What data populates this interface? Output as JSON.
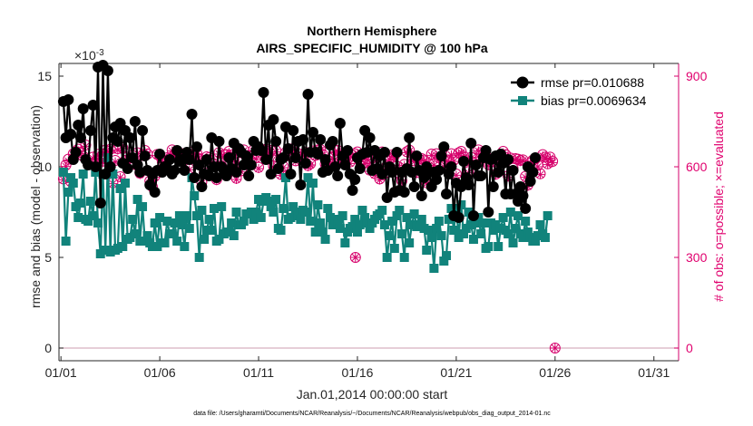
{
  "chart_data": {
    "type": "line",
    "title": "Northern Hemisphere",
    "subtitle": "AIRS_SPECIFIC_HUMIDITY @ 100 hPa",
    "xlabel": "Jan.01,2014 00:00:00 start",
    "ylabel": "rmse and bias (model - observation)",
    "y2label": "# of obs: o=possible; ×=evaluated",
    "exponent_label": "×10",
    "exponent_power": "-3",
    "x_tick_labels": [
      "01/01",
      "01/06",
      "01/11",
      "01/16",
      "01/21",
      "01/26",
      "01/31"
    ],
    "x_tick_days": [
      0,
      5,
      10,
      15,
      20,
      25,
      30
    ],
    "xlim": [
      -0.1,
      31.25
    ],
    "y_tick_labels": [
      "0",
      "5",
      "10",
      "15"
    ],
    "y_ticks": [
      0,
      5,
      10,
      15
    ],
    "ylim": [
      -0.7,
      15.7
    ],
    "y2_tick_labels": [
      "0",
      "300",
      "600",
      "900"
    ],
    "y2_ticks": [
      0,
      300,
      600,
      900
    ],
    "y2lim": [
      -42,
      942
    ],
    "legend_placement": "top-right",
    "x_days": [
      0.125,
      0.25,
      0.375,
      0.5,
      0.625,
      0.75,
      0.875,
      1,
      1.125,
      1.25,
      1.375,
      1.5,
      1.625,
      1.75,
      1.875,
      2,
      2.125,
      2.25,
      2.375,
      2.5,
      2.625,
      2.75,
      2.875,
      3,
      3.125,
      3.25,
      3.375,
      3.5,
      3.625,
      3.75,
      3.875,
      4,
      4.125,
      4.25,
      4.375,
      4.5,
      4.625,
      4.75,
      4.875,
      5,
      5.125,
      5.25,
      5.375,
      5.5,
      5.625,
      5.75,
      5.875,
      6,
      6.125,
      6.25,
      6.375,
      6.5,
      6.625,
      6.75,
      6.875,
      7,
      7.125,
      7.25,
      7.375,
      7.5,
      7.625,
      7.75,
      7.875,
      8,
      8.125,
      8.25,
      8.375,
      8.5,
      8.625,
      8.75,
      8.875,
      9,
      9.125,
      9.25,
      9.375,
      9.5,
      9.625,
      9.75,
      9.875,
      10,
      10.125,
      10.25,
      10.375,
      10.5,
      10.625,
      10.75,
      10.875,
      11,
      11.125,
      11.25,
      11.375,
      11.5,
      11.625,
      11.75,
      11.875,
      12,
      12.125,
      12.25,
      12.375,
      12.5,
      12.625,
      12.75,
      12.875,
      13,
      13.125,
      13.25,
      13.375,
      13.5,
      13.625,
      13.75,
      13.875,
      14,
      14.125,
      14.25,
      14.375,
      14.5,
      14.625,
      14.75,
      14.875,
      15,
      15.125,
      15.25,
      15.375,
      15.5,
      15.625,
      15.75,
      15.875,
      16,
      16.125,
      16.25,
      16.375,
      16.5,
      16.625,
      16.75,
      16.875,
      17,
      17.125,
      17.25,
      17.375,
      17.5,
      17.625,
      17.75,
      17.875,
      18,
      18.125,
      18.25,
      18.375,
      18.5,
      18.625,
      18.75,
      18.875,
      19,
      19.125,
      19.25,
      19.375,
      19.5,
      19.625,
      19.75,
      19.875,
      20,
      20.125,
      20.25,
      20.375,
      20.5,
      20.625,
      20.75,
      20.875,
      21,
      21.125,
      21.25,
      21.375,
      21.5,
      21.625,
      21.75,
      21.875,
      22,
      22.125,
      22.25,
      22.375,
      22.5,
      22.625,
      22.75,
      22.875,
      23,
      23.125,
      23.25,
      23.375,
      23.5,
      23.625,
      23.75,
      23.875,
      24,
      24.125,
      24.25,
      24.375,
      24.5,
      24.625,
      24.75,
      24.875,
      25,
      25.125,
      25.25,
      25.375,
      25.5,
      25.625,
      25.75,
      25.875,
      26,
      26.125,
      26.25,
      26.375,
      26.5,
      26.625,
      26.75,
      26.875,
      27,
      27.125,
      27.25,
      27.375,
      27.5,
      27.625,
      27.75,
      27.875,
      28,
      28.125,
      28.25,
      28.375,
      28.5,
      28.625,
      28.75,
      28.875,
      29,
      29.125,
      29.25,
      29.375,
      29.5,
      29.625,
      29.75,
      29.875,
      30,
      30.125,
      30.25,
      30.375,
      30.5,
      30.625,
      30.75,
      30.875,
      31
    ],
    "series": [
      {
        "name": "rmse pr=0.010688",
        "axis": "left",
        "color": "#000000",
        "marker": "circle",
        "values": [
          13.6,
          11.6,
          13.7,
          11.8,
          10.4,
          10.8,
          12.3,
          11.6,
          13.2,
          10.4,
          10.1,
          12.0,
          13.4,
          10.0,
          15.5,
          8.0,
          15.6,
          9.6,
          15.3,
          10.0,
          11.6,
          12.2,
          11.4,
          12.4,
          10.2,
          12.0,
          9.9,
          11.6,
          10.5,
          12.5,
          10.1,
          9.7,
          12.0,
          10.6,
          9.8,
          9.0,
          9.6,
          8.6,
          9.8,
          10.7,
          9.7,
          10.0,
          9.9,
          10.4,
          9.6,
          9.8,
          10.9,
          10.3,
          10.4,
          9.8,
          10.8,
          10.4,
          12.9,
          9.4,
          11.1,
          10.1,
          8.9,
          9.6,
          10.4,
          9.5,
          11.6,
          10.0,
          9.4,
          11.4,
          10.0,
          9.8,
          9.5,
          10.5,
          9.9,
          11.3,
          9.7,
          11.0,
          10.8,
          10.1,
          10.6,
          9.5,
          10.1,
          11.4,
          10.9,
          11.1,
          10.9,
          14.1,
          10.4,
          12.3,
          9.6,
          12.6,
          11.4,
          9.9,
          10.4,
          10.5,
          12.2,
          11.0,
          9.6,
          12.0,
          10.5,
          11.4,
          9.0,
          11.5,
          10.2,
          14.0,
          10.8,
          11.9,
          10.8,
          10.7,
          11.5,
          9.7,
          10.4,
          9.8,
          11.2,
          11.4,
          10.0,
          9.5,
          12.4,
          10.6,
          10.1,
          10.9,
          9.6,
          8.7,
          9.3,
          10.5,
          9.9,
          10.7,
          12.0,
          10.8,
          11.6,
          9.8,
          10.9,
          9.9,
          10.6,
          9.6,
          10.8,
          8.3,
          10.0,
          9.7,
          8.6,
          10.8,
          8.7,
          9.7,
          8.6,
          9.9,
          11.6,
          9.7,
          8.9,
          10.6,
          9.8,
          8.4,
          9.4,
          10.0,
          9.7,
          8.9,
          9.7,
          9.3,
          9.8,
          10.6,
          11.1,
          8.5,
          9.6,
          10.0,
          7.3,
          9.1,
          7.2,
          8.9,
          10.3,
          9.4,
          9.0,
          11.3,
          7.3,
          10.1,
          9.5,
          9.5,
          10.5,
          10.9,
          7.5,
          10.4,
          8.9,
          10.6,
          9.7,
          10.7,
          10.2,
          8.5,
          10.4,
          8.5,
          9.8,
          8.5,
          8.1,
          8.9,
          8.4,
          7.7,
          10.0,
          9.2,
          9.7,
          10.5
        ]
      },
      {
        "name": "bias pr=0.0069634",
        "axis": "left",
        "color": "#11837b",
        "marker": "square",
        "values": [
          9.7,
          5.9,
          8.6,
          9.4,
          9.1,
          7.8,
          7.2,
          8.0,
          9.6,
          7.1,
          7.0,
          8.1,
          7.3,
          9.7,
          6.9,
          5.2,
          9.6,
          5.4,
          10.5,
          5.3,
          9.6,
          5.4,
          5.5,
          8.8,
          5.6,
          9.1,
          6.0,
          6.1,
          7.1,
          6.3,
          8.2,
          5.9,
          7.8,
          5.9,
          6.2,
          5.8,
          5.6,
          6.9,
          5.6,
          7.2,
          5.8,
          5.8,
          7.0,
          6.3,
          6.3,
          6.9,
          5.9,
          7.3,
          6.8,
          5.6,
          7.3,
          6.6,
          9.4,
          8.4,
          7.3,
          5.0,
          7.6,
          6.0,
          6.5,
          7.1,
          6.5,
          7.7,
          5.9,
          6.0,
          7.8,
          6.3,
          6.4,
          6.4,
          6.9,
          6.2,
          7.5,
          6.8,
          6.8,
          7.0,
          7.4,
          7.4,
          7.5,
          7.1,
          7.5,
          8.2,
          7.2,
          8.1,
          8.3,
          8.1,
          7.8,
          7.5,
          8.2,
          6.6,
          6.5,
          7.7,
          9.4,
          7.1,
          7.2,
          7.8,
          7.5,
          7.3,
          7.1,
          7.6,
          7.5,
          9.4,
          7.0,
          9.1,
          6.4,
          7.9,
          6.9,
          6.4,
          6.0,
          7.7,
          7.2,
          6.8,
          7.1,
          6.9,
          6.6,
          7.3,
          5.8,
          6.4,
          6.6,
          6.7,
          7.1,
          6.4,
          6.8,
          7.6,
          7.2,
          6.9,
          6.6,
          6.9,
          7.1,
          7.3,
          7.4,
          7.6,
          6.8,
          5.0,
          6.2,
          7.0,
          5.5,
          7.3,
          7.6,
          6.3,
          5.0,
          7.2,
          5.8,
          6.8,
          7.4,
          6.7,
          6.8,
          7.1,
          6.6,
          5.4,
          6.5,
          6.1,
          4.4,
          6.6,
          7.0,
          6.2,
          4.8,
          5.1,
          7.1,
          7.7,
          6.5,
          7.7,
          6.1,
          7.9,
          6.3,
          6.6,
          7.5,
          6.8,
          6.0,
          6.9,
          7.2,
          6.3,
          6.9,
          5.5,
          5.6,
          6.9,
          6.5,
          6.8,
          5.6,
          6.6,
          7.2,
          6.5,
          6.3,
          7.5,
          5.8,
          6.6,
          7.3,
          6.3,
          6.1,
          7.0,
          6.4,
          6.1,
          5.9,
          5.9,
          6.2,
          6.8,
          6.3,
          6.1,
          7.3
        ]
      },
      {
        "name": "possible",
        "axis": "right",
        "color": "#d6006b",
        "marker": "circle-open",
        "values": [
          560,
          606,
          625,
          551,
          643,
          650,
          658,
          648,
          635,
          672,
          608,
          610,
          632,
          611,
          641,
          631,
          619,
          655,
          651,
          658,
          547,
          621,
          660,
          567,
          663,
          621,
          632,
          629,
          637,
          608,
          646,
          579,
          638,
          654,
          642,
          553,
          534,
          569,
          641,
          636,
          617,
          602,
          630,
          628,
          656,
          642,
          638,
          622,
          643,
          629,
          643,
          593,
          648,
          636,
          645,
          627,
          549,
          581,
          633,
          630,
          612,
          610,
          558,
          647,
          603,
          640,
          640,
          651,
          639,
          633,
          562,
          615,
          587,
          656,
          608,
          638,
          633,
          656,
          631,
          598,
          646,
          654,
          658,
          640,
          654,
          603,
          654,
          620,
          575,
          601,
          647,
          638,
          659,
          658,
          620,
          644,
          630,
          627,
          648,
          604,
          610,
          652,
          638,
          656,
          657,
          641,
          609,
          622,
          609,
          630,
          654,
          654,
          619,
          619,
          644,
          641,
          616,
          637,
          643,
          649,
          620,
          639,
          614,
          628,
          589,
          611,
          578,
          633,
          560,
          649,
          578,
          604,
          628,
          639,
          637,
          602,
          577,
          553,
          608,
          650,
          655,
          635,
          620,
          582,
          625,
          627,
          622,
          547,
          609,
          642,
          609,
          643,
          630,
          634,
          603,
          623,
          619,
          643,
          622,
          576,
          646,
          651,
          635,
          620,
          584,
          631,
          614,
          616,
          656,
          647,
          625,
          634,
          608,
          626,
          627,
          576,
          607,
          617,
          651,
          640,
          570,
          629,
          595,
          627,
          625,
          621,
          623,
          568,
          540,
          613,
          622,
          626,
          605,
          577,
          640,
          632,
          610,
          632,
          618,
          0
        ]
      },
      {
        "name": "evaluated",
        "axis": "right",
        "color": "#d6006b",
        "marker": "x",
        "values": [
          557,
          601,
          619,
          548,
          639,
          645,
          653,
          643,
          632,
          668,
          603,
          607,
          628,
          606,
          636,
          628,
          614,
          650,
          648,
          654,
          544,
          616,
          655,
          564,
          660,
          616,
          627,
          624,
          634,
          603,
          643,
          574,
          634,
          650,
          638,
          548,
          529,
          565,
          637,
          632,
          613,
          597,
          625,
          624,
          652,
          638,
          634,
          619,
          638,
          624,
          639,
          590,
          644,
          632,
          640,
          623,
          545,
          576,
          628,
          627,
          608,
          605,
          554,
          642,
          599,
          635,
          636,
          647,
          634,
          629,
          558,
          611,
          583,
          653,
          604,
          633,
          628,
          652,
          626,
          594,
          641,
          650,
          655,
          636,
          650,
          599,
          649,
          615,
          572,
          597,
          643,
          633,
          655,
          654,
          617,
          641,
          626,
          623,
          643,
          600,
          606,
          648,
          633,
          651,
          654,
          637,
          605,
          617,
          606,
          626,
          650,
          650,
          615,
          615,
          640,
          636,
          611,
          632,
          640,
          644,
          616,
          634,
          610,
          624,
          585,
          606,
          573,
          628,
          556,
          644,
          575,
          600,
          624,
          635,
          632,
          598,
          573,
          548,
          604,
          647,
          651,
          631,
          617,
          577,
          621,
          624,
          619,
          544,
          605,
          638,
          605,
          638,
          626,
          630,
          600,
          620,
          615,
          639,
          618,
          572,
          643,
          647,
          631,
          616,
          580,
          628,
          610,
          612,
          652,
          644,
          620,
          630,
          603,
          622,
          623,
          572,
          602,
          613,
          646,
          635,
          566,
          626,
          591,
          623,
          621,
          617,
          620,
          565,
          535,
          610,
          618,
          622,
          600,
          574,
          636,
          629,
          607,
          629,
          614,
          0
        ]
      }
    ],
    "extra_possible_marker": {
      "x_day": 14.9,
      "value": 300
    }
  },
  "footer": "data file: /Users/gharamti/Documents/NCAR/Reanalysis/~/Documents/NCAR/Reanalysis/webpub/obs_diag_output_2014-01.nc",
  "colors": {
    "rmse": "#000000",
    "bias": "#11837b",
    "obs": "#d6006b",
    "axis_right": "#e0006e",
    "axis_left": "#262626"
  }
}
